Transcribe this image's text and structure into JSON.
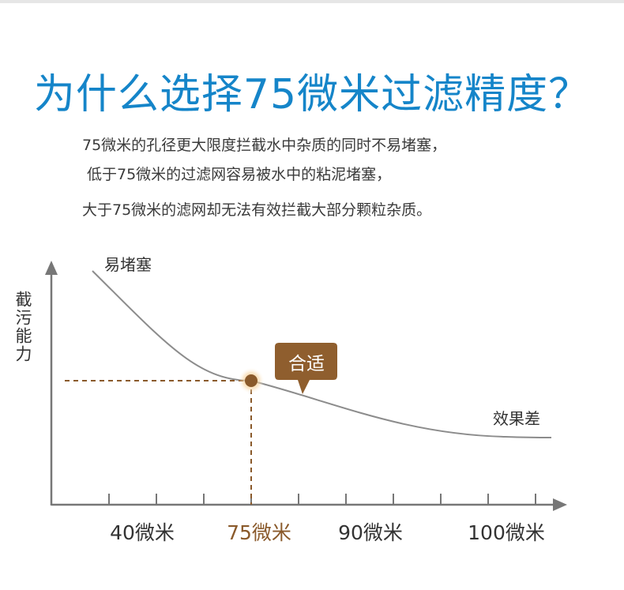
{
  "header": {
    "title": "为什么选择75微米过滤精度？",
    "lines": [
      "75微米的孔径更大限度拦截水中杂质的同时不易堵塞，",
      "低于75微米的过滤网容易被水中的粘泥堵塞，",
      "大于75微米的滤网却无法有效拦截大部分颗粒杂质。"
    ]
  },
  "colors": {
    "title": "#1585c9",
    "text": "#3a3a3a",
    "axis": "#777777",
    "curve": "#8c8c8c",
    "highlight": "#8a5a2b",
    "callout": "#8f5e2e",
    "callout_text": "#ffffff",
    "marker_glow": "#f3c27a"
  },
  "chart_data": {
    "type": "line",
    "ylabel": "截污能力",
    "xlabel": "",
    "x_ticks": [
      "40微米",
      "75微米",
      "90微米",
      "100微米"
    ],
    "highlight_tick": "75微米",
    "curve_labels": {
      "start": "易堵塞",
      "end": "效果差"
    },
    "callout": "合适",
    "highlight_point": {
      "x": "75微米"
    },
    "grid": false
  }
}
